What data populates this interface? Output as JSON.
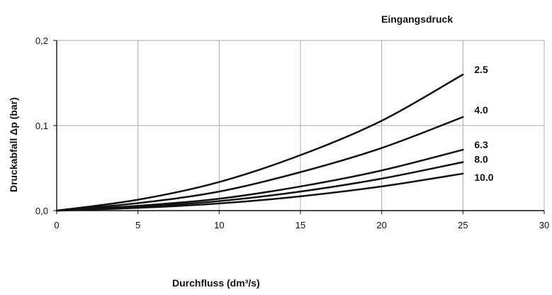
{
  "chart_data": {
    "type": "line",
    "title": "",
    "legend_title": "Eingangsdruck",
    "xlabel": "Durchfluss (dm³/s)",
    "ylabel": "Druckabfall Δp (bar)",
    "xlim": [
      0,
      30
    ],
    "ylim": [
      0,
      0.2
    ],
    "x_ticks": [
      {
        "value": 0,
        "label": "0"
      },
      {
        "value": 5,
        "label": "5"
      },
      {
        "value": 10,
        "label": "10"
      },
      {
        "value": 15,
        "label": "15"
      },
      {
        "value": 20,
        "label": "20"
      },
      {
        "value": 25,
        "label": "25"
      },
      {
        "value": 30,
        "label": "30"
      }
    ],
    "y_ticks": [
      {
        "value": 0,
        "label": "0,0"
      },
      {
        "value": 0.1,
        "label": "0,1"
      },
      {
        "value": 0.2,
        "label": "0,2"
      }
    ],
    "grid": true,
    "legend_placement": "right, labels at curve ends",
    "series": [
      {
        "name": "2.5",
        "x": [
          0,
          5,
          10,
          15,
          20,
          25
        ],
        "y": [
          0,
          0.0128,
          0.0336,
          0.0652,
          0.1056,
          0.16
        ],
        "color": "#111111"
      },
      {
        "name": "4.0",
        "x": [
          0,
          5,
          10,
          15,
          20,
          25
        ],
        "y": [
          0,
          0.0088,
          0.0224,
          0.0452,
          0.0736,
          0.11
        ],
        "color": "#111111"
      },
      {
        "name": "6.3",
        "x": [
          0,
          5,
          10,
          15,
          20,
          25
        ],
        "y": [
          0,
          0.0056,
          0.014,
          0.0284,
          0.0472,
          0.0715
        ],
        "color": "#111111"
      },
      {
        "name": "8.0",
        "x": [
          0,
          5,
          10,
          15,
          20,
          25
        ],
        "y": [
          0,
          0.0044,
          0.0112,
          0.0224,
          0.0376,
          0.057
        ],
        "color": "#111111"
      },
      {
        "name": "10.0",
        "x": [
          0,
          5,
          10,
          15,
          20,
          25
        ],
        "y": [
          0,
          0.0032,
          0.0084,
          0.0168,
          0.0284,
          0.0435
        ],
        "color": "#111111"
      }
    ],
    "styles": {
      "gridColor": "#a8a8a8",
      "axisColor": "#111111",
      "lineColor": "#111111"
    }
  }
}
